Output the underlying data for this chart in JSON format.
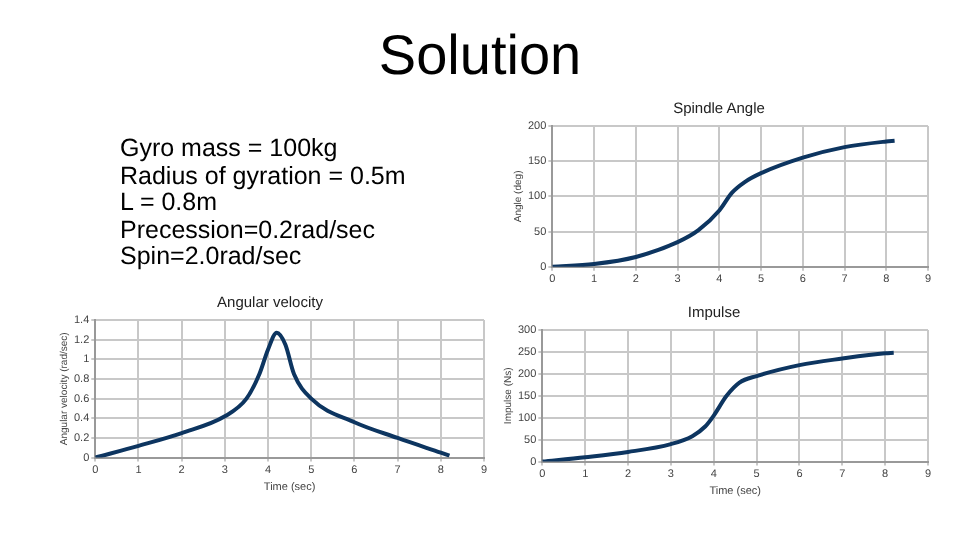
{
  "chart_data": [
    {
      "type": "other",
      "title": "Solution",
      "annotations": [
        "Gyro mass = 100kg",
        "Radius of gyration = 0.5m",
        "L = 0.8m",
        "Precession=0.2rad/sec",
        "Spin=2.0rad/sec"
      ]
    },
    {
      "type": "line",
      "title": "Spindle Angle",
      "ylabel": "Angle (deg)",
      "x": [
        0,
        1,
        2,
        3,
        3.5,
        4,
        4.3,
        4.6,
        5,
        6,
        7,
        8,
        8.2
      ],
      "values": [
        0,
        4,
        14,
        35,
        52,
        80,
        105,
        120,
        133,
        155,
        170,
        178,
        179
      ],
      "color": "#0d3560",
      "xlim": [
        0,
        9
      ],
      "xticks": [
        0,
        1,
        2,
        3,
        4,
        5,
        6,
        7,
        8,
        9
      ],
      "ylim": [
        0,
        200
      ],
      "yticks": [
        0,
        50,
        100,
        150,
        200
      ],
      "grid": true,
      "marker": "none",
      "line_style": "solid"
    },
    {
      "type": "line",
      "title": "Angular velocity",
      "xlabel": "Time (sec)",
      "ylabel": "Angular velocity (rad/sec)",
      "x": [
        0,
        1,
        2,
        3,
        3.5,
        3.8,
        4,
        4.2,
        4.4,
        4.6,
        5,
        6,
        7,
        8,
        8.2
      ],
      "values": [
        0,
        0.12,
        0.25,
        0.42,
        0.6,
        0.85,
        1.1,
        1.27,
        1.15,
        0.85,
        0.6,
        0.36,
        0.2,
        0.05,
        0.02
      ],
      "color": "#0d3560",
      "xlim": [
        0,
        9
      ],
      "xticks": [
        0,
        1,
        2,
        3,
        4,
        5,
        6,
        7,
        8,
        9
      ],
      "ylim": [
        0,
        1.4
      ],
      "yticks": [
        0,
        0.2,
        0.4,
        0.6,
        0.8,
        1,
        1.2,
        1.4
      ],
      "grid": true,
      "marker": "none",
      "line_style": "solid"
    },
    {
      "type": "line",
      "title": "Impulse",
      "xlabel": "Time (sec)",
      "ylabel": "Impulse (Ns)",
      "x": [
        0,
        1,
        2,
        3,
        3.5,
        3.8,
        4,
        4.3,
        4.6,
        5,
        6,
        7,
        8,
        8.2
      ],
      "values": [
        0,
        10,
        22,
        40,
        58,
        80,
        105,
        150,
        180,
        195,
        220,
        235,
        247,
        248
      ],
      "color": "#0d3560",
      "xlim": [
        0,
        9
      ],
      "xticks": [
        0,
        1,
        2,
        3,
        4,
        5,
        6,
        7,
        8,
        9
      ],
      "ylim": [
        0,
        300
      ],
      "yticks": [
        0,
        50,
        100,
        150,
        200,
        250,
        300
      ],
      "grid": true,
      "marker": "none",
      "line_style": "solid"
    }
  ]
}
